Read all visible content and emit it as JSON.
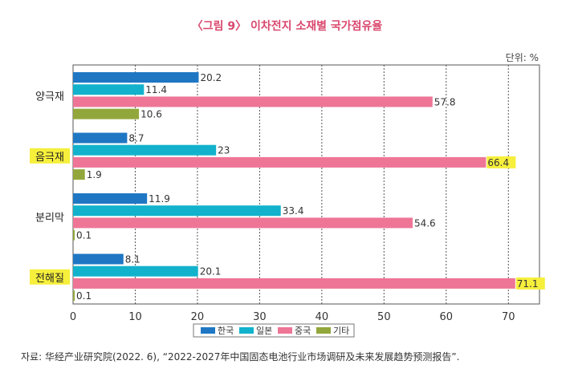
{
  "title": "〈그림 9〉 이차전지 소재별 국가점유율",
  "unit_label": "단위: %",
  "source": "자료: 华经产业研究院(2022. 6), “2022-2027年中国固态电池行业市场调研及未来发展趋势预测报告”.",
  "chart_data": {
    "type": "bar",
    "orientation": "horizontal",
    "title": "〈그림 9〉 이차전지 소재별 국가점유율",
    "xlabel": "",
    "ylabel": "",
    "xlim": [
      0,
      75
    ],
    "xticks": [
      0,
      10,
      20,
      30,
      40,
      50,
      60,
      70
    ],
    "grid": "vertical-dotted",
    "legend": "bottom-center",
    "categories": [
      "양극재",
      "음극재",
      "분리막",
      "전해질"
    ],
    "highlighted_categories": [
      "음극재",
      "전해질"
    ],
    "series": [
      {
        "name": "한국",
        "color": "#1f77c4",
        "values": [
          20.2,
          8.7,
          11.9,
          8.1
        ],
        "labels": [
          "20.2",
          "8.7",
          "11.9",
          "8.1"
        ]
      },
      {
        "name": "일본",
        "color": "#12b2cc",
        "values": [
          11.4,
          23,
          33.4,
          20.1
        ],
        "labels": [
          "11.4",
          "23",
          "33.4",
          "20.1"
        ]
      },
      {
        "name": "중국",
        "color": "#ee7596",
        "values": [
          57.8,
          66.4,
          54.6,
          71.1
        ],
        "labels": [
          "57.8",
          "66.4",
          "54.6",
          "71.1"
        ]
      },
      {
        "name": "기타",
        "color": "#92a73b",
        "values": [
          10.6,
          1.9,
          0.1,
          0.1
        ],
        "labels": [
          "10.6",
          "1.9",
          "0.1",
          "0.1"
        ]
      }
    ],
    "highlighted_values": [
      {
        "category": "음극재",
        "series": "중국"
      },
      {
        "category": "전해질",
        "series": "중국"
      }
    ],
    "highlight_color": "#f6ef3c"
  }
}
